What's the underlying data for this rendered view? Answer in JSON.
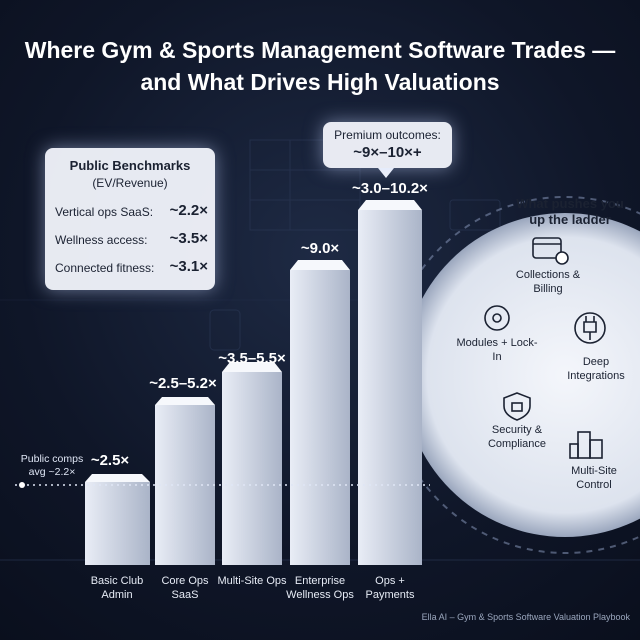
{
  "title": "Where Gym & Sports Management Software Trades — and What Drives High Valuations",
  "benchmarks": {
    "title": "Public Benchmarks",
    "subtitle": "(EV/Revenue)",
    "rows": [
      {
        "label": "Vertical ops SaaS:",
        "value": "~2.2×"
      },
      {
        "label": "Wellness access:",
        "value": "~3.5×"
      },
      {
        "label": "Connected fitness:",
        "value": "~3.1×"
      }
    ]
  },
  "premium": {
    "label": "Premium outcomes:",
    "value": "~9×–10×+"
  },
  "reference": "Public comps avg ~2.2×",
  "bars": [
    {
      "label": "~2.5×",
      "category": "Basic Club Admin"
    },
    {
      "label": "~2.5–5.2×",
      "category": "Core Ops SaaS"
    },
    {
      "label": "~3.5–5.5×",
      "category": "Multi-Site Ops"
    },
    {
      "label": "~9.0×",
      "category": "Enterprise Wellness Ops"
    },
    {
      "label": "~3.0–10.2×",
      "category": "Ops + Payments"
    }
  ],
  "drivers": {
    "title": "What pushes you up the ladder",
    "items": [
      "Collections & Billing",
      "Modules + Lock-In",
      "Deep Integrations",
      "Security & Compliance",
      "Multi-Site Control"
    ]
  },
  "footer": "Ella AI – Gym & Sports Software Valuation Playbook"
}
